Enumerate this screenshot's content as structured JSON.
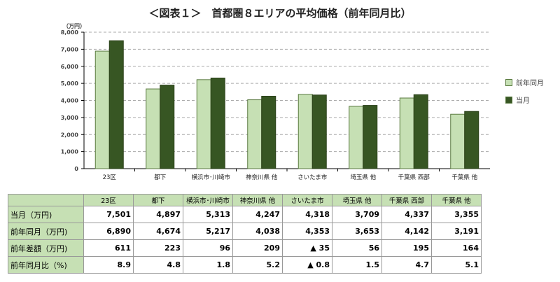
{
  "title": "＜図表１＞　首都圏８エリアの平均価格（前年同月比）",
  "colors": {
    "prev": "#c6e0b4",
    "curr": "#375623"
  },
  "chart_data": {
    "type": "bar",
    "title": "＜図表１＞　首都圏８エリアの平均価格（前年同月比）",
    "ylabel": "（万円）",
    "ylim": [
      0,
      8000
    ],
    "yticks": [
      "0",
      "1,000",
      "2,000",
      "3,000",
      "4,000",
      "5,000",
      "6,000",
      "7,000",
      "8,000"
    ],
    "grid": true,
    "legend": "right",
    "categories": [
      "23区",
      "都下",
      "横浜市･川崎市",
      "神奈川県 他",
      "さいたま市",
      "埼玉県 他",
      "千葉県 西部",
      "千葉県 他"
    ],
    "series": [
      {
        "name": "前年同月",
        "values": [
          6890,
          4674,
          5217,
          4038,
          4353,
          3653,
          4142,
          3191
        ]
      },
      {
        "name": "当月",
        "values": [
          7501,
          4897,
          5313,
          4247,
          4318,
          3709,
          4337,
          3355
        ]
      }
    ]
  },
  "table": {
    "headers": [
      "23区",
      "都下",
      "横浜市･川崎市",
      "神奈川県 他",
      "さいたま市",
      "埼玉県 他",
      "千葉県 西部",
      "千葉県 他"
    ],
    "rows": [
      {
        "label": "当月（万円)",
        "cells": [
          "7,501",
          "4,897",
          "5,313",
          "4,247",
          "4,318",
          "3,709",
          "4,337",
          "3,355"
        ]
      },
      {
        "label": "前年同月（万円)",
        "cells": [
          "6,890",
          "4,674",
          "5,217",
          "4,038",
          "4,353",
          "3,653",
          "4,142",
          "3,191"
        ]
      },
      {
        "label": "前年差額（万円)",
        "cells": [
          "611",
          "223",
          "96",
          "209",
          "▲ 35",
          "56",
          "195",
          "164"
        ]
      },
      {
        "label": "前年同月比（%)",
        "cells": [
          "8.9",
          "4.8",
          "1.8",
          "5.2",
          "▲ 0.8",
          "1.5",
          "4.7",
          "5.1"
        ]
      }
    ]
  }
}
